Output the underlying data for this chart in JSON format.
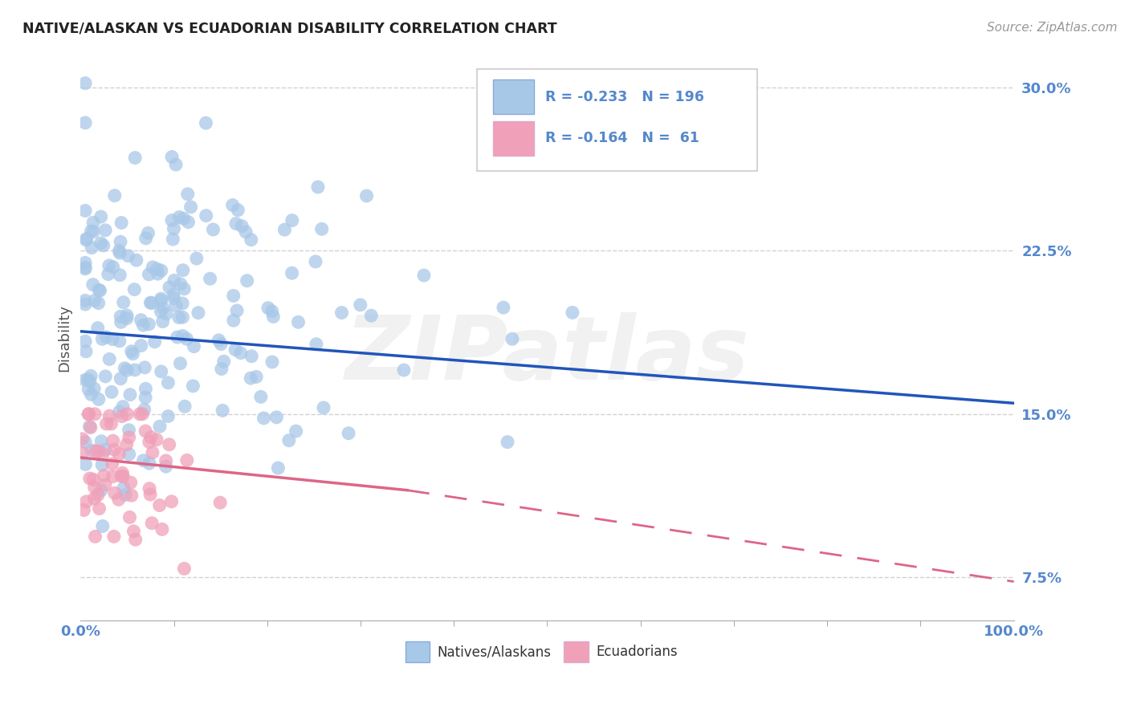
{
  "title": "NATIVE/ALASKAN VS ECUADORIAN DISABILITY CORRELATION CHART",
  "source": "Source: ZipAtlas.com",
  "ylabel": "Disability",
  "legend_labels": [
    "Natives/Alaskans",
    "Ecuadorians"
  ],
  "blue_color": "#a8c8e8",
  "pink_color": "#f0a0b8",
  "trend_blue": "#2255bb",
  "trend_pink": "#dd6688",
  "axis_label_color": "#5588cc",
  "watermark": "ZIPatlas",
  "blue_line": {
    "x0": 0.0,
    "y0": 18.8,
    "x1": 100.0,
    "y1": 15.5
  },
  "pink_line_solid": {
    "x0": 0.0,
    "y0": 13.0,
    "x1": 35.0,
    "y1": 11.5
  },
  "pink_line_dashed": {
    "x0": 35.0,
    "y0": 11.5,
    "x1": 100.0,
    "y1": 7.3
  },
  "xmin": 0.0,
  "xmax": 100.0,
  "ymin": 5.5,
  "ymax": 31.5,
  "yticks": [
    7.5,
    15.0,
    22.5,
    30.0
  ],
  "xticks_major": [
    0.0,
    100.0
  ],
  "xticks_minor": [
    10,
    20,
    30,
    40,
    50,
    60,
    70,
    80,
    90
  ],
  "bg_color": "#ffffff",
  "grid_color": "#cccccc",
  "legend_R_blue": "R = -0.233",
  "legend_N_blue": "N = 196",
  "legend_R_pink": "R = -0.164",
  "legend_N_pink": "N =  61"
}
